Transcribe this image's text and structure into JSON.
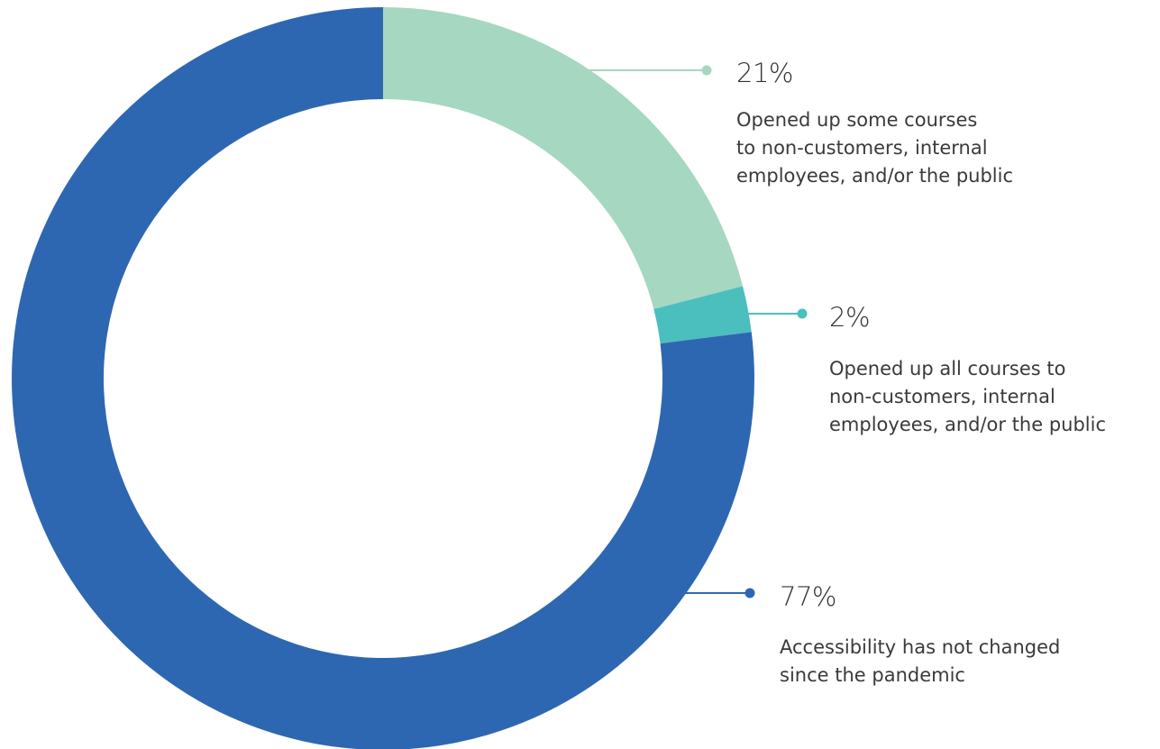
{
  "chart_data": {
    "type": "pie",
    "donut": true,
    "categories": [
      "Opened up some courses\nto non-customers, internal\nemployees, and/or the public",
      "Opened up all courses to\nnon-customers, internal\nemployees, and/or the public",
      "Accessibility has not changed\nsince the pandemic"
    ],
    "values": [
      21,
      2,
      77
    ],
    "value_labels": [
      "21%",
      "2%",
      "77%"
    ],
    "colors": [
      "#a6d7c0",
      "#4bbfbd",
      "#2e67b1"
    ],
    "start_angle": "12 o'clock",
    "direction": "clockwise"
  }
}
